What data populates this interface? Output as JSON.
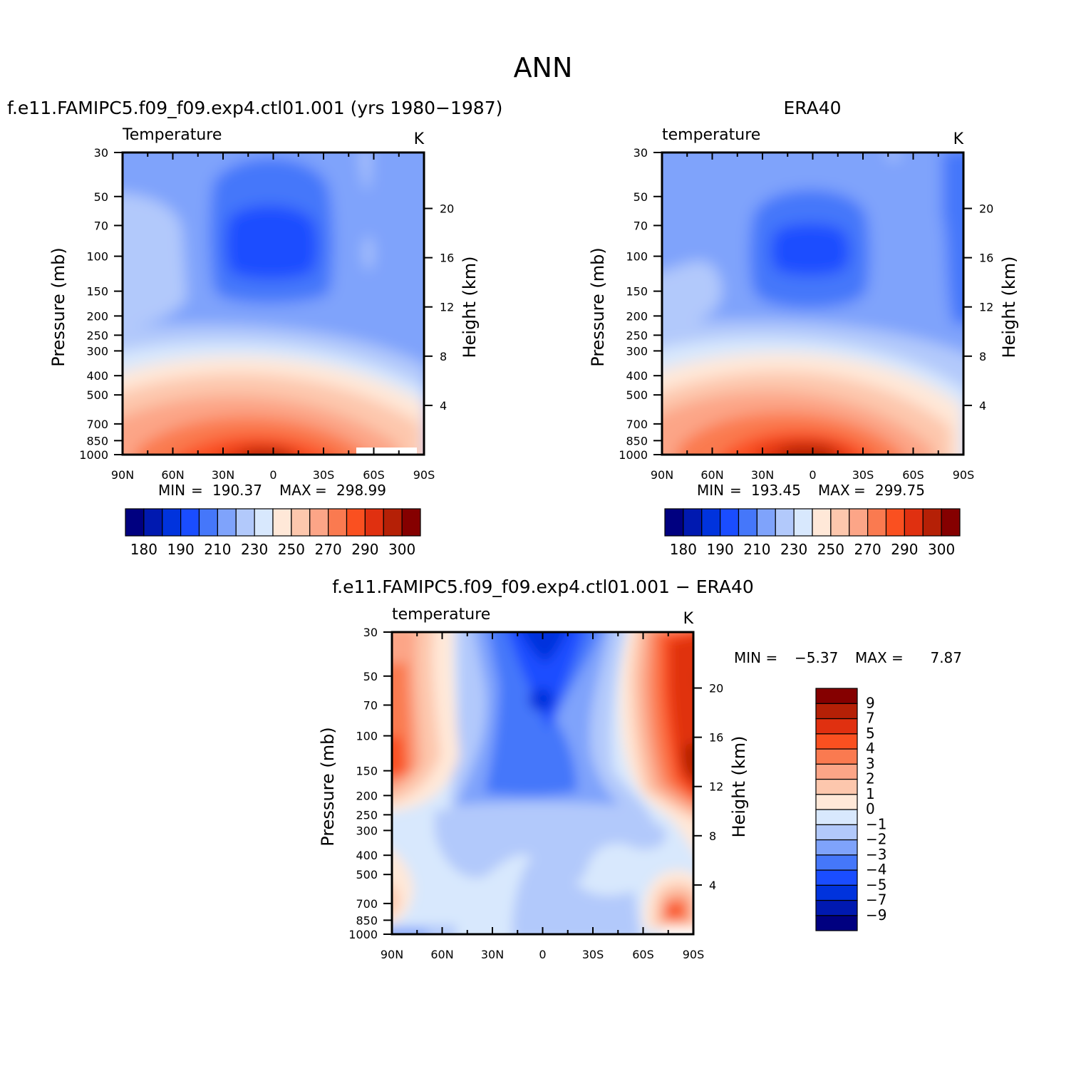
{
  "figure_title": "ANN",
  "colors": {
    "abs_scale": [
      "#000080",
      "#0019b0",
      "#0033dd",
      "#1a4dff",
      "#4577fa",
      "#7fa3fb",
      "#b2c9fb",
      "#d8e8fd",
      "#ffe8d8",
      "#fdc7ad",
      "#fca587",
      "#fa7a50",
      "#fa5020",
      "#e03010",
      "#b52006",
      "#850000"
    ],
    "diff_scale": [
      "#000080",
      "#0019b0",
      "#0033dd",
      "#1a4dff",
      "#4577fa",
      "#7fa3fb",
      "#b2c9fb",
      "#d8e8fd",
      "#ffe8d8",
      "#fdc7ad",
      "#fca587",
      "#fa7a50",
      "#fa5020",
      "#e03010",
      "#b52006",
      "#850000"
    ]
  },
  "chart_data": [
    {
      "type": "heatmap",
      "title": "f.e11.FAMIPC5.f09_f09.exp4.ctl01.001 (yrs 1980−1987)",
      "variable": "Temperature",
      "units": "K",
      "ylabel": "Pressure (mb)",
      "ylabel_right": "Height (km)",
      "x_ticks": [
        "90N",
        "60N",
        "30N",
        "0",
        "30S",
        "60S",
        "90S"
      ],
      "y_ticks": [
        "30",
        "50",
        "70",
        "100",
        "150",
        "200",
        "250",
        "300",
        "400",
        "500",
        "700",
        "850",
        "1000"
      ],
      "y_ticks_right": [
        "20",
        "16",
        "12",
        "8",
        "4"
      ],
      "min_label": "MIN",
      "min_value": "190.37",
      "max_label": "MAX",
      "max_value": "298.99",
      "colorbar_labels": [
        "180",
        "190",
        "210",
        "230",
        "250",
        "270",
        "290",
        "300"
      ],
      "colorbar_levels": [
        180,
        185,
        190,
        200,
        210,
        220,
        230,
        240,
        250,
        260,
        270,
        280,
        290,
        295,
        300
      ]
    },
    {
      "type": "heatmap",
      "title": "ERA40",
      "variable": "temperature",
      "units": "K",
      "ylabel": "Pressure (mb)",
      "ylabel_right": "Height (km)",
      "x_ticks": [
        "90N",
        "60N",
        "30N",
        "0",
        "30S",
        "60S",
        "90S"
      ],
      "y_ticks": [
        "30",
        "50",
        "70",
        "100",
        "150",
        "200",
        "250",
        "300",
        "400",
        "500",
        "700",
        "850",
        "1000"
      ],
      "y_ticks_right": [
        "20",
        "16",
        "12",
        "8",
        "4"
      ],
      "min_label": "MIN",
      "min_value": "193.45",
      "max_label": "MAX",
      "max_value": "299.75",
      "colorbar_labels": [
        "180",
        "190",
        "210",
        "230",
        "250",
        "270",
        "290",
        "300"
      ],
      "colorbar_levels": [
        180,
        185,
        190,
        200,
        210,
        220,
        230,
        240,
        250,
        260,
        270,
        280,
        290,
        295,
        300
      ]
    },
    {
      "type": "heatmap",
      "title": "f.e11.FAMIPC5.f09_f09.exp4.ctl01.001 − ERA40",
      "variable": "temperature",
      "units": "K",
      "ylabel": "Pressure (mb)",
      "ylabel_right": "Height (km)",
      "x_ticks": [
        "90N",
        "60N",
        "30N",
        "0",
        "30S",
        "60S",
        "90S"
      ],
      "y_ticks": [
        "30",
        "50",
        "70",
        "100",
        "150",
        "200",
        "250",
        "300",
        "400",
        "500",
        "700",
        "850",
        "1000"
      ],
      "y_ticks_right": [
        "20",
        "16",
        "12",
        "8",
        "4"
      ],
      "min_label": "MIN =",
      "min_value": "−5.37",
      "max_label": "MAX =",
      "max_value": "7.87",
      "colorbar_labels": [
        "9",
        "7",
        "5",
        "4",
        "3",
        "2",
        "1",
        "0",
        "−1",
        "−2",
        "−3",
        "−4",
        "−5",
        "−7",
        "−9"
      ],
      "colorbar_levels": [
        -9,
        -7,
        -5,
        -4,
        -3,
        -2,
        -1,
        0,
        1,
        2,
        3,
        4,
        5,
        7,
        9
      ]
    }
  ]
}
